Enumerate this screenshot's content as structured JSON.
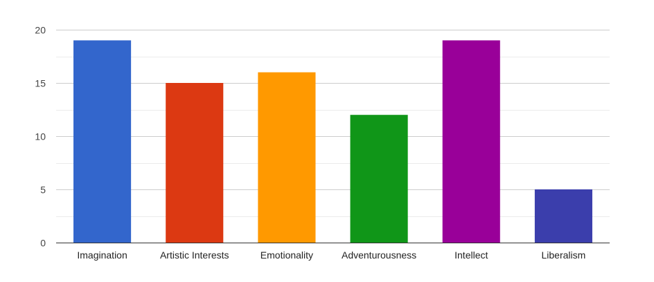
{
  "chart_data": {
    "type": "bar",
    "categories": [
      "Imagination",
      "Artistic Interests",
      "Emotionality",
      "Adventurousness",
      "Intellect",
      "Liberalism"
    ],
    "values": [
      19,
      15,
      16,
      12,
      19,
      5
    ],
    "colors": [
      "#3366cc",
      "#dc3912",
      "#ff9900",
      "#109618",
      "#990099",
      "#3b3eac"
    ],
    "yticks": [
      0,
      5,
      10,
      15,
      20
    ],
    "ylim": [
      0,
      20
    ],
    "grid": true,
    "minor_grid": true,
    "legend": "none"
  }
}
